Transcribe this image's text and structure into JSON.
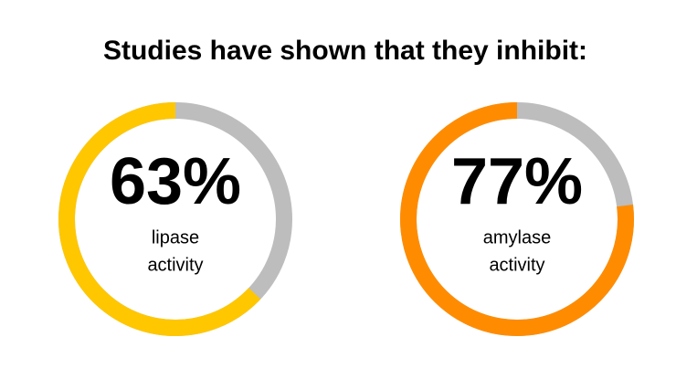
{
  "title": "Studies have shown that they inhibit:",
  "chart_data": [
    {
      "type": "donut",
      "values": [
        63
      ],
      "value_labels": [
        "63%"
      ],
      "label_lines": [
        "lipase",
        "activity"
      ],
      "color": "#ffc700",
      "track_color": "#bdbdbd",
      "ylim": [
        0,
        100
      ]
    },
    {
      "type": "donut",
      "values": [
        77
      ],
      "value_labels": [
        "77%"
      ],
      "label_lines": [
        "amylase",
        "activity"
      ],
      "color": "#ff8c00",
      "track_color": "#bdbdbd",
      "ylim": [
        0,
        100
      ]
    }
  ]
}
